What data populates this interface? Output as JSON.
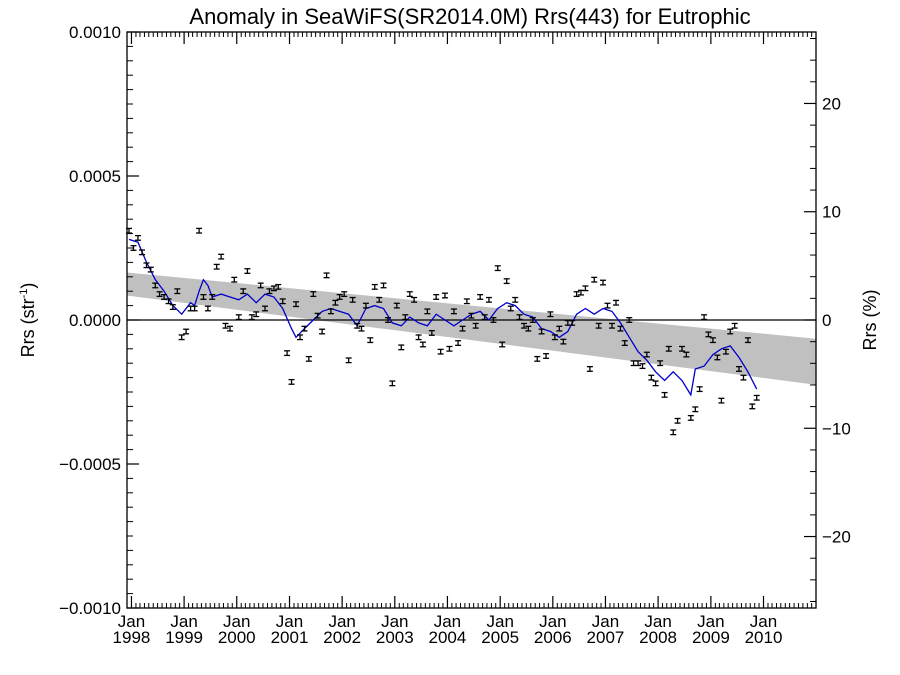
{
  "chart_data": {
    "type": "scatter",
    "title": "Anomaly in SeaWiFS(SR2014.0M) Rrs(443) for Eutrophic",
    "ylabel_left": "Rrs (str",
    "ylabel_left_sup": "-1",
    "ylabel_left_close": ")",
    "ylabel_right": "Rrs (%)",
    "xlim": [
      "1997-12-01",
      "2010-12-31"
    ],
    "ylim": [
      -0.001,
      0.001
    ],
    "ylim_right_percent": [
      -26.6,
      26.6
    ],
    "y_ticks": [
      -0.001,
      -0.0005,
      0.0,
      0.0005,
      0.001
    ],
    "y_tick_labels": [
      "−0.0010",
      "−0.0005",
      "0.0000",
      "0.0005",
      "0.0010"
    ],
    "y2_ticks": [
      -20,
      -10,
      0,
      10,
      20
    ],
    "y2_tick_labels": [
      "−20",
      "−10",
      "0",
      "10",
      "20"
    ],
    "x_ticks": [
      "1998-01-01",
      "1999-01-01",
      "2000-01-01",
      "2001-01-01",
      "2002-01-01",
      "2003-01-01",
      "2004-01-01",
      "2005-01-01",
      "2006-01-01",
      "2007-01-01",
      "2008-01-01",
      "2009-01-01",
      "2010-01-01"
    ],
    "x_tick_month": "Jan",
    "x_tick_years": [
      "1998",
      "1999",
      "2000",
      "2001",
      "2002",
      "2003",
      "2004",
      "2005",
      "2006",
      "2007",
      "2008",
      "2009",
      "2010"
    ],
    "grid": false,
    "zero_line": true,
    "trend_band": {
      "start": {
        "date": "1997-12-01",
        "lower": 8.5e-05,
        "upper": 0.000165
      },
      "end": {
        "date": "2010-12-31",
        "lower": -0.000225,
        "upper": -6.5e-05
      },
      "color": "#c0c0c0"
    },
    "series": [
      {
        "style": "errorbar-points",
        "color": "#000000",
        "error": 8e-06,
        "points": [
          [
            "1997-12-15",
            0.00031
          ],
          [
            "1998-01-15",
            0.00025
          ],
          [
            "1998-02-15",
            0.000285
          ],
          [
            "1998-03-15",
            0.000235
          ],
          [
            "1998-04-15",
            0.00019
          ],
          [
            "1998-05-15",
            0.000175
          ],
          [
            "1998-06-15",
            0.00012
          ],
          [
            "1998-07-15",
            9e-05
          ],
          [
            "1998-08-15",
            8e-05
          ],
          [
            "1998-09-15",
            6.5e-05
          ],
          [
            "1998-10-15",
            4.5e-05
          ],
          [
            "1998-11-15",
            0.0001
          ],
          [
            "1998-12-15",
            -6e-05
          ],
          [
            "1999-01-15",
            -4e-05
          ],
          [
            "1999-02-15",
            4e-05
          ],
          [
            "1999-03-15",
            4e-05
          ],
          [
            "1999-04-15",
            0.00031
          ],
          [
            "1999-05-15",
            8e-05
          ],
          [
            "1999-06-15",
            4e-05
          ],
          [
            "1999-07-15",
            8e-05
          ],
          [
            "1999-08-15",
            0.000185
          ],
          [
            "1999-09-15",
            0.00022
          ],
          [
            "1999-10-15",
            -2e-05
          ],
          [
            "1999-11-15",
            -3e-05
          ],
          [
            "1999-12-15",
            0.00014
          ],
          [
            "2000-01-15",
            1e-05
          ],
          [
            "2000-02-15",
            0.0001
          ],
          [
            "2000-03-15",
            0.00017
          ],
          [
            "2000-04-15",
            1e-05
          ],
          [
            "2000-05-15",
            2e-05
          ],
          [
            "2000-06-15",
            0.00012
          ],
          [
            "2000-07-15",
            4e-05
          ],
          [
            "2000-08-15",
            0.0001
          ],
          [
            "2000-09-15",
            0.00011
          ],
          [
            "2000-10-15",
            0.000115
          ],
          [
            "2000-11-15",
            6.5e-05
          ],
          [
            "2000-12-15",
            -0.000115
          ],
          [
            "2001-01-15",
            -0.000215
          ],
          [
            "2001-02-15",
            5.5e-05
          ],
          [
            "2001-03-15",
            -6e-05
          ],
          [
            "2001-04-15",
            -3e-05
          ],
          [
            "2001-05-15",
            -0.000135
          ],
          [
            "2001-06-15",
            9e-05
          ],
          [
            "2001-07-15",
            1.5e-05
          ],
          [
            "2001-08-15",
            -4e-05
          ],
          [
            "2001-09-15",
            0.000155
          ],
          [
            "2001-10-15",
            3e-05
          ],
          [
            "2001-11-15",
            6e-05
          ],
          [
            "2001-12-15",
            8e-05
          ],
          [
            "2002-01-15",
            9e-05
          ],
          [
            "2002-02-15",
            -0.00014
          ],
          [
            "2002-03-15",
            7e-05
          ],
          [
            "2002-04-15",
            -2e-05
          ],
          [
            "2002-05-15",
            -3e-05
          ],
          [
            "2002-06-15",
            5e-05
          ],
          [
            "2002-07-15",
            -7e-05
          ],
          [
            "2002-08-15",
            0.000115
          ],
          [
            "2002-09-15",
            7e-05
          ],
          [
            "2002-10-15",
            0.00012
          ],
          [
            "2002-11-15",
            0.0
          ],
          [
            "2002-12-15",
            -0.00022
          ],
          [
            "2003-01-15",
            5e-05
          ],
          [
            "2003-02-15",
            -9.5e-05
          ],
          [
            "2003-03-15",
            1e-05
          ],
          [
            "2003-04-15",
            9e-05
          ],
          [
            "2003-05-15",
            7e-05
          ],
          [
            "2003-06-15",
            -6e-05
          ],
          [
            "2003-07-15",
            -8.5e-05
          ],
          [
            "2003-08-15",
            3e-05
          ],
          [
            "2003-09-15",
            -4.5e-05
          ],
          [
            "2003-10-15",
            8e-05
          ],
          [
            "2003-11-15",
            -0.00011
          ],
          [
            "2003-12-15",
            8.5e-05
          ],
          [
            "2004-01-15",
            -0.0001
          ],
          [
            "2004-02-15",
            3e-05
          ],
          [
            "2004-03-15",
            -8e-05
          ],
          [
            "2004-04-15",
            -3e-05
          ],
          [
            "2004-05-15",
            6.5e-05
          ],
          [
            "2004-06-15",
            1.5e-05
          ],
          [
            "2004-07-15",
            -2e-05
          ],
          [
            "2004-08-15",
            8e-05
          ],
          [
            "2004-09-15",
            1e-05
          ],
          [
            "2004-10-15",
            7e-05
          ],
          [
            "2004-11-15",
            0.0
          ],
          [
            "2004-12-15",
            0.00018
          ],
          [
            "2005-01-15",
            -8.5e-05
          ],
          [
            "2005-02-15",
            0.000135
          ],
          [
            "2005-03-15",
            4e-05
          ],
          [
            "2005-04-15",
            7e-05
          ],
          [
            "2005-05-15",
            1e-05
          ],
          [
            "2005-06-15",
            -2e-05
          ],
          [
            "2005-07-15",
            -3e-05
          ],
          [
            "2005-08-15",
            0.0
          ],
          [
            "2005-09-15",
            -0.000135
          ],
          [
            "2005-10-15",
            -4e-05
          ],
          [
            "2005-11-15",
            -0.000125
          ],
          [
            "2005-12-15",
            2e-05
          ],
          [
            "2006-01-15",
            -6e-05
          ],
          [
            "2006-02-15",
            -3e-05
          ],
          [
            "2006-03-15",
            -7.5e-05
          ],
          [
            "2006-04-15",
            -1e-05
          ],
          [
            "2006-05-15",
            -1e-05
          ],
          [
            "2006-06-15",
            9e-05
          ],
          [
            "2006-07-15",
            9.5e-05
          ],
          [
            "2006-08-15",
            0.00011
          ],
          [
            "2006-09-15",
            -0.00017
          ],
          [
            "2006-10-15",
            0.00014
          ],
          [
            "2006-11-15",
            -2e-05
          ],
          [
            "2006-12-15",
            0.00013
          ],
          [
            "2007-01-15",
            5e-05
          ],
          [
            "2007-02-15",
            -2e-05
          ],
          [
            "2007-03-15",
            6e-05
          ],
          [
            "2007-04-15",
            -3e-05
          ],
          [
            "2007-05-15",
            -8e-05
          ],
          [
            "2007-06-15",
            0.0
          ],
          [
            "2007-07-15",
            -0.00015
          ],
          [
            "2007-08-15",
            -0.00015
          ],
          [
            "2007-09-15",
            -0.00016
          ],
          [
            "2007-10-15",
            -0.00012
          ],
          [
            "2007-11-15",
            -0.0002
          ],
          [
            "2007-12-15",
            -0.00022
          ],
          [
            "2008-01-15",
            -0.00015
          ],
          [
            "2008-02-15",
            -0.00026
          ],
          [
            "2008-03-15",
            -0.0001
          ],
          [
            "2008-04-15",
            -0.00039
          ],
          [
            "2008-05-15",
            -0.00035
          ],
          [
            "2008-06-15",
            -0.0001
          ],
          [
            "2008-07-15",
            -0.00012
          ],
          [
            "2008-08-15",
            -0.00034
          ],
          [
            "2008-09-15",
            -0.00031
          ],
          [
            "2008-10-15",
            -0.00024
          ],
          [
            "2008-11-15",
            1e-05
          ],
          [
            "2008-12-15",
            -5e-05
          ],
          [
            "2009-01-15",
            -7e-05
          ],
          [
            "2009-02-15",
            -0.00013
          ],
          [
            "2009-03-15",
            -0.00028
          ],
          [
            "2009-04-15",
            -0.00011
          ],
          [
            "2009-05-15",
            -4e-05
          ],
          [
            "2009-06-15",
            -2e-05
          ],
          [
            "2009-07-15",
            -0.00017
          ],
          [
            "2009-08-15",
            -0.0002
          ],
          [
            "2009-09-15",
            -7e-05
          ],
          [
            "2009-10-15",
            -0.0003
          ],
          [
            "2009-11-15",
            -0.00027
          ]
        ]
      },
      {
        "style": "line",
        "color": "#0000cc",
        "points": [
          [
            "1997-12-15",
            0.00028
          ],
          [
            "1998-02-15",
            0.00027
          ],
          [
            "1998-04-15",
            0.0002
          ],
          [
            "1998-06-15",
            0.00014
          ],
          [
            "1998-08-15",
            0.0001
          ],
          [
            "1998-10-15",
            5e-05
          ],
          [
            "1998-12-15",
            2e-05
          ],
          [
            "1999-02-15",
            6e-05
          ],
          [
            "1999-03-15",
            5e-05
          ],
          [
            "1999-04-15",
            0.0001
          ],
          [
            "1999-05-15",
            0.00014
          ],
          [
            "1999-06-15",
            0.00012
          ],
          [
            "1999-07-15",
            8e-05
          ],
          [
            "1999-09-15",
            9e-05
          ],
          [
            "1999-11-15",
            8e-05
          ],
          [
            "2000-01-15",
            7e-05
          ],
          [
            "2000-03-15",
            9e-05
          ],
          [
            "2000-05-15",
            6e-05
          ],
          [
            "2000-07-15",
            9e-05
          ],
          [
            "2000-09-15",
            8e-05
          ],
          [
            "2000-11-15",
            4e-05
          ],
          [
            "2001-01-15",
            -3e-05
          ],
          [
            "2001-02-15",
            -6e-05
          ],
          [
            "2001-04-15",
            -3e-05
          ],
          [
            "2001-06-15",
            0.0
          ],
          [
            "2001-08-15",
            3e-05
          ],
          [
            "2001-10-15",
            4e-05
          ],
          [
            "2001-12-15",
            3e-05
          ],
          [
            "2002-02-15",
            2e-05
          ],
          [
            "2002-04-15",
            -2e-05
          ],
          [
            "2002-06-15",
            4e-05
          ],
          [
            "2002-08-15",
            5e-05
          ],
          [
            "2002-10-15",
            4e-05
          ],
          [
            "2002-12-15",
            -1e-05
          ],
          [
            "2003-02-15",
            -2e-05
          ],
          [
            "2003-04-15",
            1e-05
          ],
          [
            "2003-06-15",
            -1e-05
          ],
          [
            "2003-08-15",
            -2e-05
          ],
          [
            "2003-10-15",
            2e-05
          ],
          [
            "2003-12-15",
            0.0
          ],
          [
            "2004-02-15",
            -2e-05
          ],
          [
            "2004-04-15",
            0.0
          ],
          [
            "2004-06-15",
            2e-05
          ],
          [
            "2004-08-15",
            3e-05
          ],
          [
            "2004-10-15",
            0.0
          ],
          [
            "2004-12-15",
            4e-05
          ],
          [
            "2005-02-15",
            6e-05
          ],
          [
            "2005-04-15",
            5e-05
          ],
          [
            "2005-06-15",
            2e-05
          ],
          [
            "2005-08-15",
            1e-05
          ],
          [
            "2005-10-15",
            -3e-05
          ],
          [
            "2005-12-15",
            -4e-05
          ],
          [
            "2006-02-15",
            -6e-05
          ],
          [
            "2006-04-15",
            -4e-05
          ],
          [
            "2006-06-15",
            2e-05
          ],
          [
            "2006-08-15",
            4e-05
          ],
          [
            "2006-10-15",
            2e-05
          ],
          [
            "2006-12-15",
            4e-05
          ],
          [
            "2007-02-15",
            3e-05
          ],
          [
            "2007-04-15",
            -1e-05
          ],
          [
            "2007-06-15",
            -6e-05
          ],
          [
            "2007-08-15",
            -0.00011
          ],
          [
            "2007-10-15",
            -0.00014
          ],
          [
            "2007-12-15",
            -0.00018
          ],
          [
            "2008-02-15",
            -0.00021
          ],
          [
            "2008-04-15",
            -0.00018
          ],
          [
            "2008-06-15",
            -0.00021
          ],
          [
            "2008-08-15",
            -0.00026
          ],
          [
            "2008-09-15",
            -0.00017
          ],
          [
            "2008-11-15",
            -0.00016
          ],
          [
            "2009-01-15",
            -0.00012
          ],
          [
            "2009-03-15",
            -0.0001
          ],
          [
            "2009-05-15",
            -9e-05
          ],
          [
            "2009-07-15",
            -0.00013
          ],
          [
            "2009-09-15",
            -0.00018
          ],
          [
            "2009-11-15",
            -0.00024
          ]
        ]
      }
    ]
  }
}
